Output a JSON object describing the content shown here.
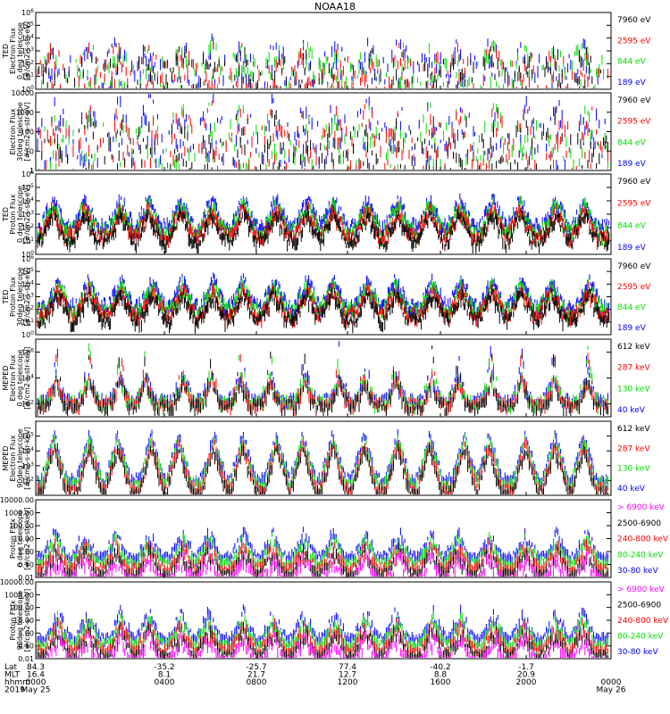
{
  "title": "NOAA18",
  "colors": {
    "blue": "#0000ff",
    "red": "#ff0000",
    "green": "#00dd00",
    "black": "#000000",
    "magenta": "#ff00ff"
  },
  "chart_data": [
    {
      "type": "line",
      "ylabel_lines": [
        "TED",
        "Electron Flux",
        "0 deg telescope",
        "[#/cm2-s-str-eV]"
      ],
      "yscale": "log",
      "ylim": [
        1,
        1000000
      ],
      "ytick_labels": [
        "10^0",
        "10^1",
        "10^2",
        "10^3",
        "10^4",
        "10^5",
        "10^6"
      ],
      "series": [
        {
          "name": "7960 eV",
          "color": "black"
        },
        {
          "name": "2595 eV",
          "color": "red"
        },
        {
          "name": "844 eV",
          "color": "green"
        },
        {
          "name": "189 eV",
          "color": "blue"
        }
      ],
      "style": "sparse_bursts",
      "base": 1.6,
      "amp": 2.4
    },
    {
      "type": "line",
      "ylabel_lines": [
        "",
        "Electron Flux",
        "30deg telescope",
        "[#/cm2-s-str-eV]"
      ],
      "yscale": "log",
      "ylim": [
        1,
        10000
      ],
      "ytick_labels": [
        "1",
        "10",
        "100",
        "1000",
        "10000"
      ],
      "series": [
        {
          "name": "7960 eV",
          "color": "black"
        },
        {
          "name": "2595 eV",
          "color": "red"
        },
        {
          "name": "844 eV",
          "color": "green"
        },
        {
          "name": "189 eV",
          "color": "blue"
        }
      ],
      "style": "sparse_bursts",
      "base": 1.5,
      "amp": 2.2
    },
    {
      "type": "line",
      "ylabel_lines": [
        "TED",
        "Proton Flux",
        "0 deg telescope",
        "[#/cm2-s-str-eV]"
      ],
      "yscale": "log",
      "ylim": [
        1,
        1000000
      ],
      "ytick_labels": [
        "10^0",
        "10^1",
        "10^2",
        "10^3",
        "10^4",
        "10^5",
        "10^6"
      ],
      "series": [
        {
          "name": "7960 eV",
          "color": "black"
        },
        {
          "name": "2595 eV",
          "color": "red"
        },
        {
          "name": "844 eV",
          "color": "green"
        },
        {
          "name": "189 eV",
          "color": "blue"
        }
      ],
      "style": "dense_band",
      "base": 1.8,
      "amp": 2.0
    },
    {
      "type": "line",
      "ylabel_lines": [
        "TED",
        "Proton Flux",
        "30deg telescope",
        "[#/cm2-s-str-eV]"
      ],
      "yscale": "log",
      "ylim": [
        1,
        1000000
      ],
      "ytick_labels": [
        "10^0",
        "10^1",
        "10^2",
        "10^3",
        "10^4",
        "10^5",
        "10^6"
      ],
      "series": [
        {
          "name": "7960 eV",
          "color": "black"
        },
        {
          "name": "2595 eV",
          "color": "red"
        },
        {
          "name": "844 eV",
          "color": "green"
        },
        {
          "name": "189 eV",
          "color": "blue"
        }
      ],
      "style": "dense_band_clean",
      "base": 2.0,
      "amp": 2.0
    },
    {
      "type": "line",
      "ylabel_lines": [
        "MEPED",
        "Electron Flux",
        "0 deg telescope",
        "[#/cm2-s-str-keV]"
      ],
      "yscale": "log",
      "ylim": [
        10,
        10000000
      ],
      "ytick_labels": [
        "10^2",
        "10^4",
        "10^6"
      ],
      "ytick_values": [
        100,
        10000,
        1000000
      ],
      "series": [
        {
          "name": "612 keV",
          "color": "black"
        },
        {
          "name": "287 keV",
          "color": "red"
        },
        {
          "name": "130 keV",
          "color": "green"
        },
        {
          "name": "40 keV",
          "color": "blue"
        }
      ],
      "style": "meped0",
      "base": 2.0,
      "amp": 4.2
    },
    {
      "type": "line",
      "ylabel_lines": [
        "MEPED",
        "Electron Flux",
        "90deg telescope",
        "[#/cm2-s-str-keV]"
      ],
      "yscale": "log",
      "ylim": [
        10,
        1000000
      ],
      "ytick_labels": [
        "10^2",
        "10^3",
        "10^4",
        "10^5"
      ],
      "ytick_values": [
        100,
        1000,
        10000,
        100000
      ],
      "series": [
        {
          "name": "612 keV",
          "color": "black"
        },
        {
          "name": "287 keV",
          "color": "red"
        },
        {
          "name": "130 keV",
          "color": "green"
        },
        {
          "name": "40 keV",
          "color": "blue"
        }
      ],
      "style": "meped90",
      "base": 2.0,
      "amp": 3.0
    },
    {
      "type": "line",
      "ylabel_lines": [
        "",
        "Proton Flux",
        "0 deg telescope",
        "[#/cm2-s-str-keV]"
      ],
      "yscale": "log",
      "ylim": [
        0.01,
        10000
      ],
      "ytick_labels": [
        "0.01",
        "0.10",
        "1.00",
        "10.00",
        "100.00",
        "1000.00",
        "10000.00"
      ],
      "series": [
        {
          "name": "> 6900 keV",
          "color": "magenta"
        },
        {
          "name": "2500-6900",
          "color": "black"
        },
        {
          "name": "240-800 keV",
          "color": "red"
        },
        {
          "name": "80-240 keV",
          "color": "green"
        },
        {
          "name": "30-80 keV",
          "color": "blue"
        }
      ],
      "style": "proton",
      "base": 0.3,
      "amp": 2.0
    },
    {
      "type": "line",
      "ylabel_lines": [
        "",
        "Proton Flux",
        "90deg telescope",
        "[#/cm2-s-str-keV]"
      ],
      "yscale": "log",
      "ylim": [
        0.01,
        10000
      ],
      "ytick_labels": [
        "0.01",
        "0.10",
        "1.00",
        "10.00",
        "100.00",
        "1000.00",
        "10000.00"
      ],
      "series": [
        {
          "name": "> 6900 keV",
          "color": "magenta"
        },
        {
          "name": "2500-6900",
          "color": "black"
        },
        {
          "name": "240-800 keV",
          "color": "red"
        },
        {
          "name": "80-240 keV",
          "color": "green"
        },
        {
          "name": "30-80 keV",
          "color": "blue"
        }
      ],
      "style": "proton",
      "base": 0.3,
      "amp": 2.2
    }
  ],
  "xaxis": {
    "row_labels": [
      "Lat",
      "MLT",
      "hhmm",
      "2019"
    ],
    "ticks": [
      {
        "lat": "84.3",
        "mlt": "16.4",
        "hhmm": "0000",
        "date": "May 25"
      },
      {
        "lat": "-35.2",
        "mlt": "8.1",
        "hhmm": "0400",
        "date": ""
      },
      {
        "lat": "-25.7",
        "mlt": "21.7",
        "hhmm": "0800",
        "date": ""
      },
      {
        "lat": "77.4",
        "mlt": "12.7",
        "hhmm": "1200",
        "date": ""
      },
      {
        "lat": "-40.2",
        "mlt": "8.8",
        "hhmm": "1600",
        "date": ""
      },
      {
        "lat": "-1.7",
        "mlt": "20.9",
        "hhmm": "2000",
        "date": ""
      },
      {
        "lat": "",
        "mlt": "",
        "hhmm": "0000",
        "date": "May 26"
      }
    ]
  }
}
